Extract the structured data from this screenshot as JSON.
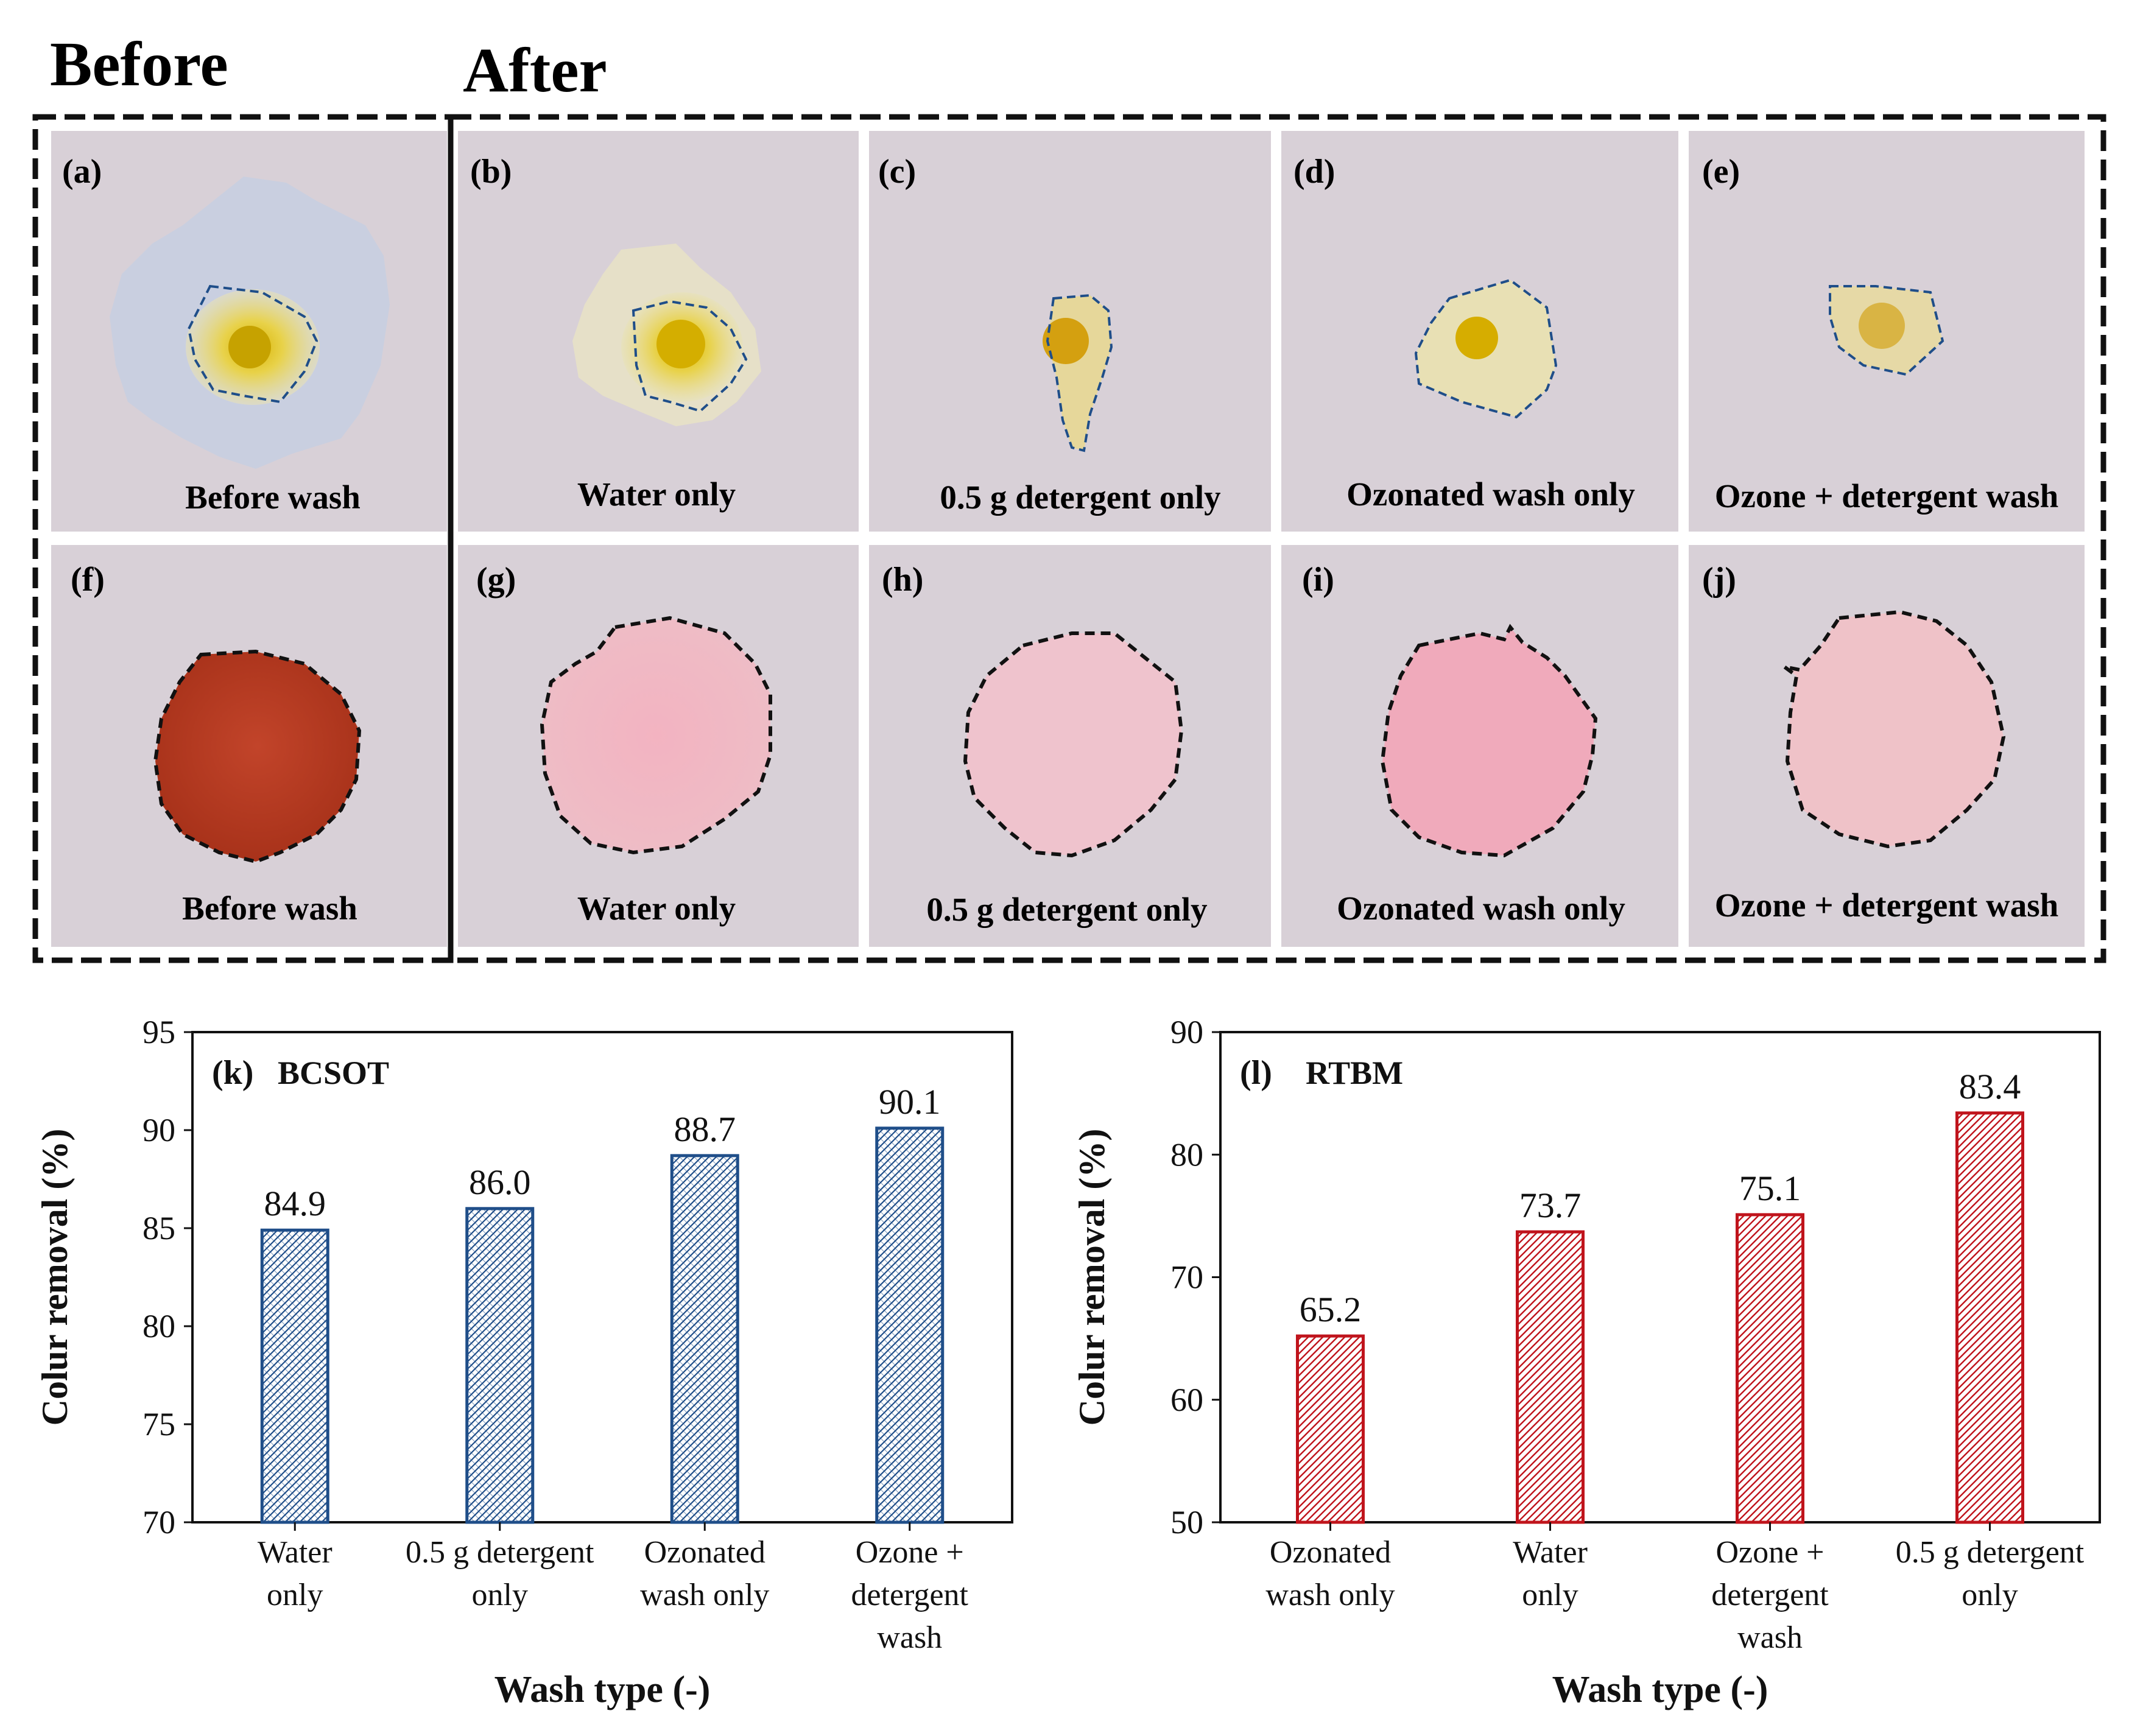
{
  "headers": {
    "before": "Before",
    "after": "After"
  },
  "panels": {
    "a": {
      "label": "(a)",
      "caption": "Before wash"
    },
    "b": {
      "label": "(b)",
      "caption": "Water only"
    },
    "c": {
      "label": "(c)",
      "caption": "0.5 g detergent only"
    },
    "d": {
      "label": "(d)",
      "caption": "Ozonated wash only"
    },
    "e": {
      "label": "(e)",
      "caption": "Ozone + detergent wash"
    },
    "f": {
      "label": "(f)",
      "caption": "Before wash"
    },
    "g": {
      "label": "(g)",
      "caption": "Water only"
    },
    "h": {
      "label": "(h)",
      "caption": "0.5 g detergent only"
    },
    "i": {
      "label": "(i)",
      "caption": "Ozonated wash only"
    },
    "j": {
      "label": "(j)",
      "caption": "Ozone + detergent wash"
    }
  },
  "colors": {
    "panel_bg": "#d8d0d7",
    "blue_stroke": "#1f4e89",
    "red_stroke": "#c0141c",
    "stain_yellow": "#e5c400",
    "stain_red": "#b23a1f",
    "stain_pink": "#f1b6c3"
  },
  "chart_data": [
    {
      "type": "bar",
      "panel_label": "(k)",
      "title": "BCSOT",
      "categories": [
        [
          "Water",
          "only"
        ],
        [
          "0.5 g detergent",
          "only"
        ],
        [
          "Ozonated",
          "wash only"
        ],
        [
          "Ozone +",
          "detergent",
          "wash"
        ]
      ],
      "values": [
        84.9,
        86.0,
        88.7,
        90.1
      ],
      "value_labels": [
        "84.9",
        "86.0",
        "88.7",
        "90.1"
      ],
      "ylim": [
        70,
        95
      ],
      "yticks": [
        70,
        75,
        80,
        85,
        90,
        95
      ],
      "xlabel": "Wash type (-)",
      "ylabel": "Colur removal (%)",
      "color": "#1f4e89",
      "hatch": "blue"
    },
    {
      "type": "bar",
      "panel_label": "(l)",
      "title": "RTBM",
      "categories": [
        [
          "Ozonated",
          "wash only"
        ],
        [
          "Water",
          "only"
        ],
        [
          "Ozone +",
          "detergent",
          "wash"
        ],
        [
          "0.5 g detergent",
          "only"
        ]
      ],
      "values": [
        65.2,
        73.7,
        75.1,
        83.4
      ],
      "value_labels": [
        "65.2",
        "73.7",
        "75.1",
        "83.4"
      ],
      "ylim": [
        50,
        90
      ],
      "yticks": [
        50,
        60,
        70,
        80,
        90
      ],
      "xlabel": "Wash type (-)",
      "ylabel": "Colur removal (%)",
      "color": "#c0141c",
      "hatch": "red"
    }
  ]
}
